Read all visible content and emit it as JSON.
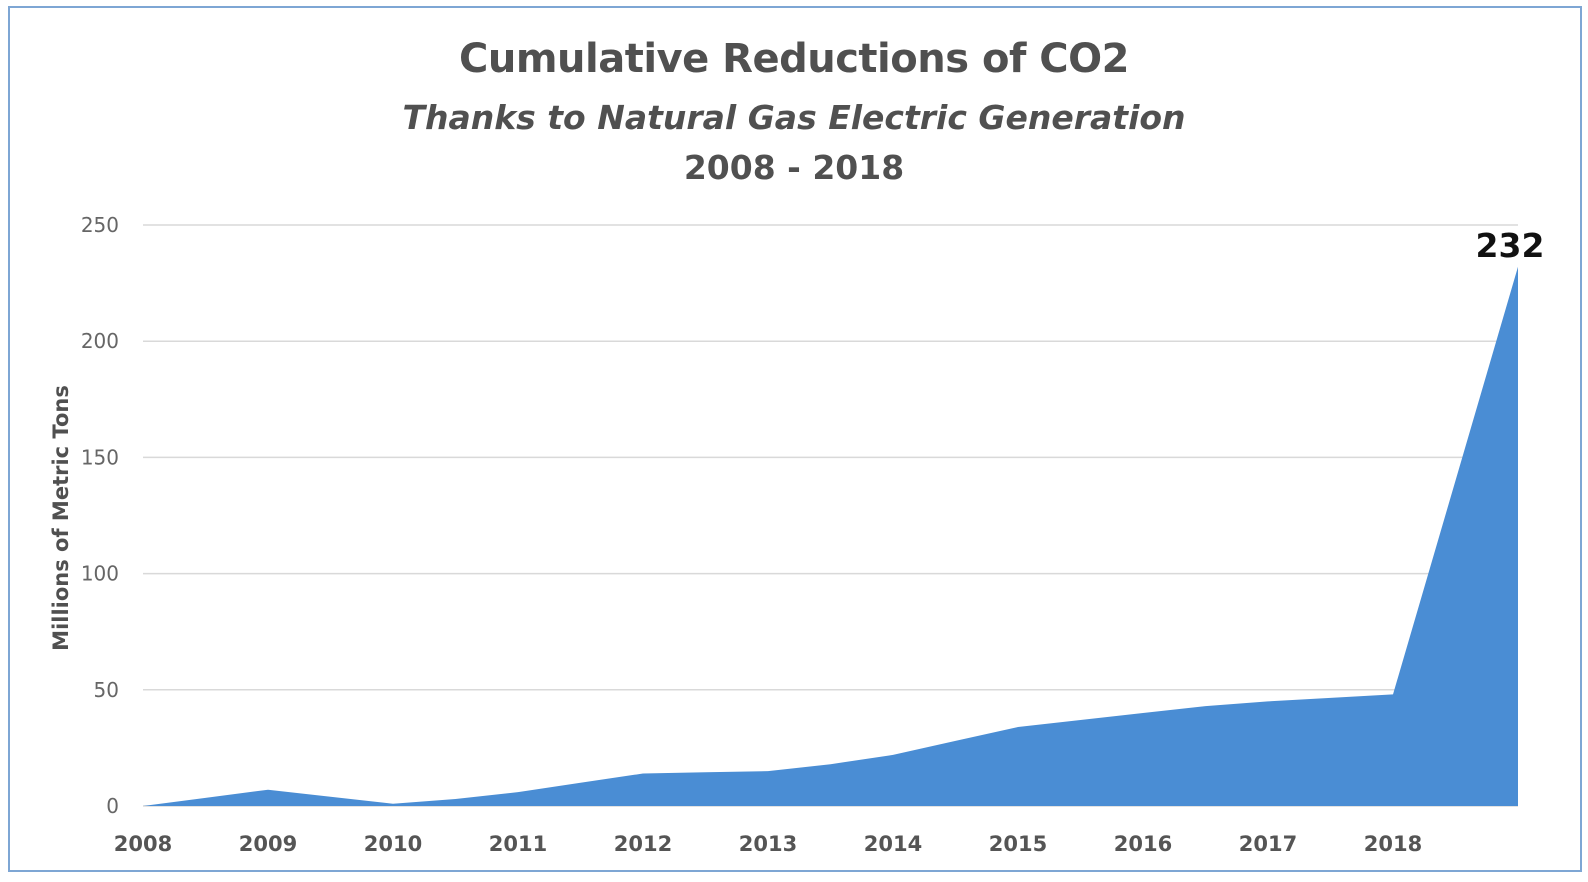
{
  "chart_data": {
    "type": "area",
    "title": "Cumulative Reductions of CO2",
    "subtitle": "Thanks to Natural Gas Electric Generation",
    "period": "2008 - 2018",
    "ylabel": "Millions of Metric Tons",
    "xlabel": "",
    "ylim": [
      0,
      250
    ],
    "yticks": [
      "0",
      "50",
      "100",
      "150",
      "200",
      "250"
    ],
    "ytick_values": [
      0,
      50,
      100,
      150,
      200,
      250
    ],
    "x_tick_labels": [
      "2008",
      "2009",
      "2010",
      "2011",
      "2012",
      "2013",
      "2014",
      "2015",
      "2016",
      "2017",
      "2018"
    ],
    "x": [
      0,
      0.5,
      1,
      1.5,
      2,
      2.5,
      3,
      3.5,
      4,
      4.5,
      5,
      5.5,
      6,
      6.5,
      7,
      7.5,
      8,
      8.5,
      9,
      9.5,
      10,
      11
    ],
    "values": [
      0,
      3.5,
      7,
      4,
      1,
      3,
      6,
      10,
      14,
      14.5,
      15,
      18,
      22,
      28,
      34,
      37,
      40,
      43,
      45,
      46.5,
      48,
      232
    ],
    "series": [
      {
        "name": "",
        "color": "#4a8dd4"
      }
    ],
    "annotation": {
      "text": "232",
      "value": 232
    },
    "grid": true,
    "legend": "none",
    "colors": {
      "area": "#4a8dd4",
      "grid": "#d9d9d9",
      "frame": "#7ea6d4"
    }
  }
}
